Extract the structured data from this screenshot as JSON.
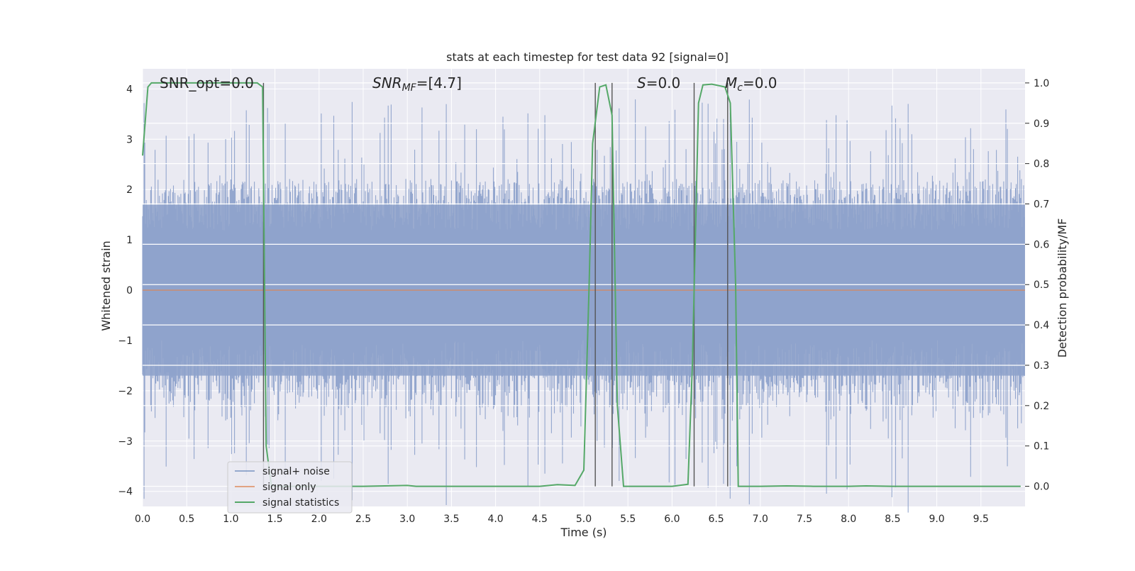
{
  "chart_data": {
    "type": "line",
    "title": "stats at each timestep for test data 92 [signal=0]",
    "xlabel": "Time (s)",
    "ylabel": "Whitened strain",
    "ylabel_right": "Detection probability/MF",
    "xlim": [
      0,
      10
    ],
    "ylim": [
      -4.3,
      4.4
    ],
    "ylim_right": [
      -0.05,
      1.035
    ],
    "grid": true,
    "legend_position": "lower-left",
    "x_ticks": [
      "0.0",
      "0.5",
      "1.0",
      "1.5",
      "2.0",
      "2.5",
      "3.0",
      "3.5",
      "4.0",
      "4.5",
      "5.0",
      "5.5",
      "6.0",
      "6.5",
      "7.0",
      "7.5",
      "8.0",
      "8.5",
      "9.0",
      "9.5"
    ],
    "y_ticks": [
      "−4",
      "−3",
      "−2",
      "−1",
      "0",
      "1",
      "2",
      "3",
      "4"
    ],
    "y_ticks_right": [
      "0.0",
      "0.1",
      "0.2",
      "0.3",
      "0.4",
      "0.5",
      "0.6",
      "0.7",
      "0.8",
      "0.9",
      "1.0"
    ],
    "annotations": {
      "snr_opt": "SNR_opt=0.0",
      "snr_mf_main": "SNR",
      "snr_mf_sub": "MF",
      "snr_mf_val": "=[4.7]",
      "s_main": "S",
      "s_val": "=0.0",
      "mc_main": "M",
      "mc_sub": "c",
      "mc_val": "=0.0"
    },
    "legend": [
      {
        "label": "signal+ noise",
        "color": "#4c72b0"
      },
      {
        "label": "signal only",
        "color": "#dd8452"
      },
      {
        "label": "signal statistics",
        "color": "#55a868"
      }
    ],
    "noise_band": {
      "typical_amplitude": 1.7,
      "peak_amplitude": 3.8
    },
    "signal_only": {
      "value": 0.0
    },
    "vertical_markers": [
      1.37,
      5.13,
      5.32,
      6.25,
      6.63
    ],
    "series": [
      {
        "name": "signal statistics",
        "color": "#55a868",
        "x": [
          0.0,
          0.06,
          0.1,
          0.2,
          0.5,
          1.0,
          1.3,
          1.36,
          1.4,
          1.46,
          1.6,
          2.0,
          2.5,
          3.0,
          3.1,
          3.5,
          4.0,
          4.5,
          4.7,
          4.9,
          5.0,
          5.06,
          5.1,
          5.18,
          5.25,
          5.32,
          5.38,
          5.45,
          5.5,
          6.0,
          6.18,
          6.23,
          6.3,
          6.35,
          6.45,
          6.6,
          6.66,
          6.72,
          6.75,
          7.0,
          7.3,
          7.6,
          8.0,
          8.2,
          8.5,
          9.0,
          9.5,
          9.95
        ],
        "values": [
          0.82,
          0.99,
          1.0,
          1.0,
          1.0,
          1.0,
          1.0,
          0.99,
          0.1,
          0.0,
          0.0,
          0.0,
          0.0,
          0.002,
          0.0,
          0.0,
          0.0,
          0.0,
          0.004,
          0.002,
          0.04,
          0.5,
          0.85,
          0.99,
          0.995,
          0.92,
          0.2,
          0.0,
          0.0,
          0.0,
          0.005,
          0.3,
          0.95,
          0.995,
          0.997,
          0.99,
          0.95,
          0.5,
          0.0,
          0.0,
          0.001,
          0.0,
          0.0,
          0.001,
          0.0,
          0.0,
          0.0,
          0.0
        ]
      }
    ]
  }
}
